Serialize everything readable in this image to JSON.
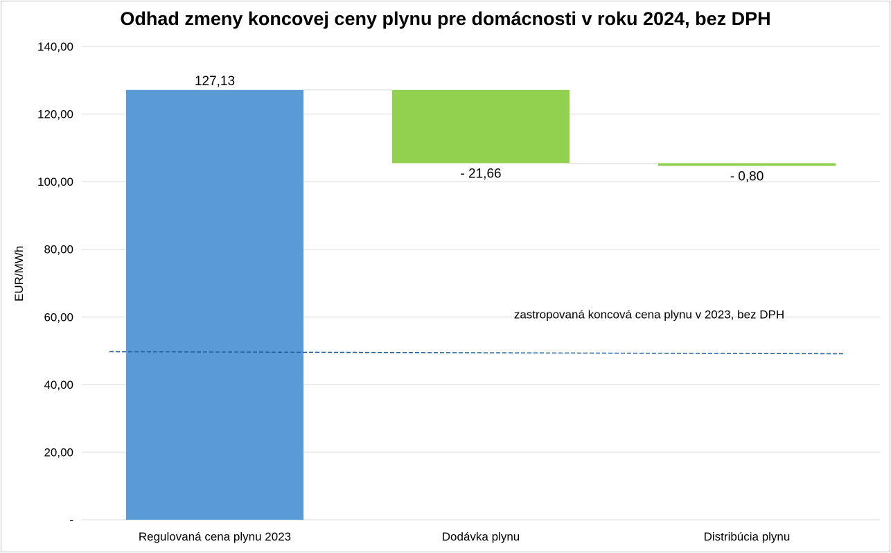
{
  "chart_data": {
    "type": "waterfall",
    "title": "Odhad zmeny koncovej ceny plynu pre domácnosti v roku 2024, bez DPH",
    "ylabel": "EUR/MWh",
    "xlabel": "",
    "ylim": [
      0,
      140
    ],
    "yticks": [
      {
        "value": 0,
        "label": "-"
      },
      {
        "value": 20,
        "label": "20,00"
      },
      {
        "value": 40,
        "label": "40,00"
      },
      {
        "value": 60,
        "label": "60,00"
      },
      {
        "value": 80,
        "label": "80,00"
      },
      {
        "value": 100,
        "label": "100,00"
      },
      {
        "value": 120,
        "label": "120,00"
      },
      {
        "value": 140,
        "label": "140,00"
      }
    ],
    "grid": true,
    "categories": [
      "Regulovaná cena plynu 2023",
      "Dodávka plynu",
      "Distribúcia plynu"
    ],
    "values": [
      127.13,
      -21.66,
      -0.8
    ],
    "data_labels": [
      "127,13",
      "- 21,66",
      "- 0,80"
    ],
    "colors": {
      "base": "#5b9bd5",
      "change": "#92d050",
      "reference": "#1f5f9e"
    },
    "reference_line": {
      "label": "zastropovaná koncová cena plynu v 2023, bez DPH",
      "value": 49.7,
      "style": "dashed"
    }
  }
}
